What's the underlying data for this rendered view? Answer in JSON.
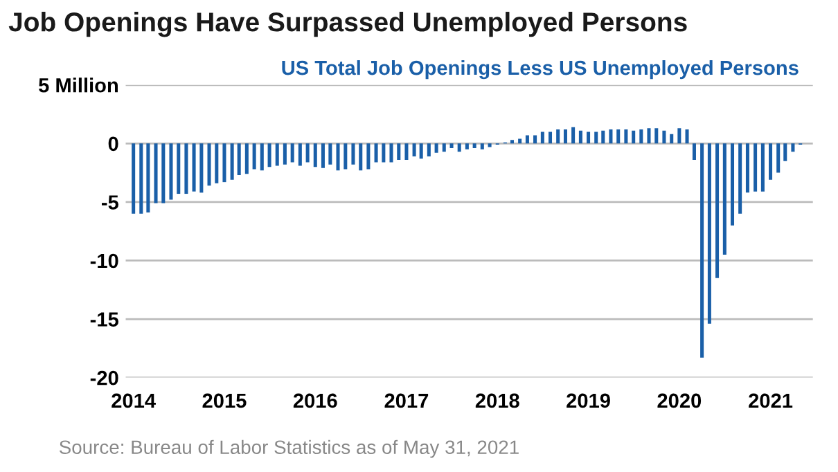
{
  "chart_data": {
    "type": "bar",
    "title": "Job Openings Have Surpassed Unemployed Persons",
    "subtitle": "US Total Job Openings Less US Unemployed Persons",
    "x": [
      "2014-01",
      "2014-02",
      "2014-03",
      "2014-04",
      "2014-05",
      "2014-06",
      "2014-07",
      "2014-08",
      "2014-09",
      "2014-10",
      "2014-11",
      "2014-12",
      "2015-01",
      "2015-02",
      "2015-03",
      "2015-04",
      "2015-05",
      "2015-06",
      "2015-07",
      "2015-08",
      "2015-09",
      "2015-10",
      "2015-11",
      "2015-12",
      "2016-01",
      "2016-02",
      "2016-03",
      "2016-04",
      "2016-05",
      "2016-06",
      "2016-07",
      "2016-08",
      "2016-09",
      "2016-10",
      "2016-11",
      "2016-12",
      "2017-01",
      "2017-02",
      "2017-03",
      "2017-04",
      "2017-05",
      "2017-06",
      "2017-07",
      "2017-08",
      "2017-09",
      "2017-10",
      "2017-11",
      "2017-12",
      "2018-01",
      "2018-02",
      "2018-03",
      "2018-04",
      "2018-05",
      "2018-06",
      "2018-07",
      "2018-08",
      "2018-09",
      "2018-10",
      "2018-11",
      "2018-12",
      "2019-01",
      "2019-02",
      "2019-03",
      "2019-04",
      "2019-05",
      "2019-06",
      "2019-07",
      "2019-08",
      "2019-09",
      "2019-10",
      "2019-11",
      "2019-12",
      "2020-01",
      "2020-02",
      "2020-03",
      "2020-04",
      "2020-05",
      "2020-06",
      "2020-07",
      "2020-08",
      "2020-09",
      "2020-10",
      "2020-11",
      "2020-12",
      "2021-01",
      "2021-02",
      "2021-03",
      "2021-04",
      "2021-05"
    ],
    "series": [
      {
        "color": "#1a5fa8",
        "values": [
          -6.0,
          -6.0,
          -5.9,
          -5.1,
          -5.1,
          -4.8,
          -4.3,
          -4.3,
          -4.1,
          -4.2,
          -3.6,
          -3.4,
          -3.3,
          -3.1,
          -2.7,
          -2.6,
          -2.2,
          -2.3,
          -2.0,
          -1.9,
          -1.8,
          -1.6,
          -1.9,
          -1.6,
          -2.0,
          -2.1,
          -1.8,
          -2.3,
          -2.2,
          -1.8,
          -2.3,
          -2.2,
          -1.6,
          -1.6,
          -1.6,
          -1.4,
          -1.4,
          -1.1,
          -1.3,
          -1.1,
          -0.8,
          -0.7,
          -0.4,
          -0.7,
          -0.5,
          -0.4,
          -0.5,
          -0.3,
          -0.1,
          0.1,
          0.3,
          0.4,
          0.7,
          0.7,
          1.0,
          1.0,
          1.2,
          1.2,
          1.4,
          1.1,
          1.0,
          1.0,
          1.1,
          1.2,
          1.2,
          1.2,
          1.1,
          1.2,
          1.3,
          1.3,
          1.1,
          0.8,
          1.3,
          1.2,
          -1.4,
          -18.3,
          -15.4,
          -11.5,
          -9.5,
          -7.0,
          -6.0,
          -4.2,
          -4.1,
          -4.1,
          -3.1,
          -2.5,
          -1.5,
          -0.7,
          -0.1
        ]
      }
    ],
    "xlim": [
      "2013-12-01",
      "2021-06-20"
    ],
    "xticks": [
      {
        "value": "2014-01",
        "label": "2014"
      },
      {
        "value": "2015-01",
        "label": "2015"
      },
      {
        "value": "2016-01",
        "label": "2016"
      },
      {
        "value": "2017-01",
        "label": "2017"
      },
      {
        "value": "2018-01",
        "label": "2018"
      },
      {
        "value": "2019-01",
        "label": "2019"
      },
      {
        "value": "2020-01",
        "label": "2020"
      },
      {
        "value": "2021-01",
        "label": "2021"
      }
    ],
    "ylim": [
      -20,
      5
    ],
    "yticks": [
      {
        "value": 5,
        "label": "5 Million"
      },
      0,
      {
        "value": -5,
        "label": "-5"
      },
      {
        "value": -10,
        "label": "-10"
      },
      {
        "value": -15,
        "label": "-15"
      },
      {
        "value": -20,
        "label": "-20"
      }
    ],
    "grid": "y",
    "annotations": [
      "Source: Bureau of Labor Statistics as of May 31, 2021"
    ]
  }
}
